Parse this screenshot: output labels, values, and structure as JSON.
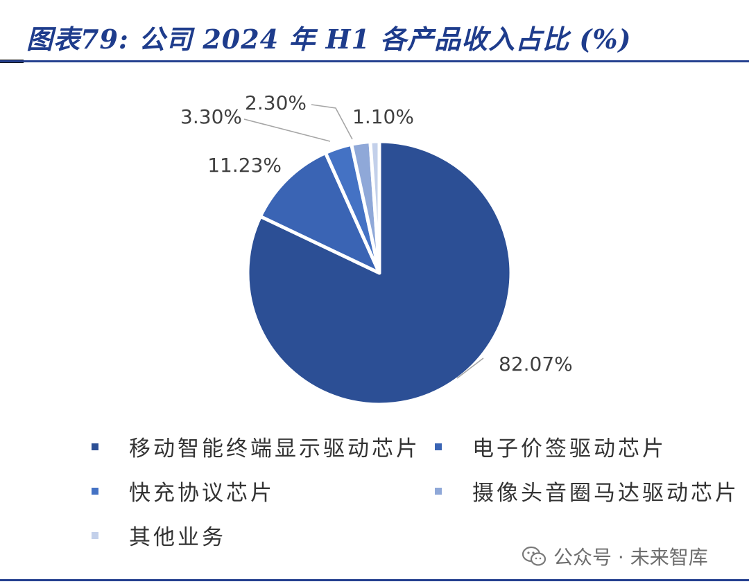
{
  "title": "图表79:  公司 2024 年 H1 各产品收入占比 (%)",
  "watermark": {
    "text": "公众号 · 未来智库",
    "icon": "wechat-icon"
  },
  "chart_data": {
    "type": "pie",
    "title": "图表79:  公司 2024 年 H1 各产品收入占比 (%)",
    "unit": "%",
    "start_angle_deg": 0,
    "direction": "clockwise",
    "slices": [
      {
        "name": "移动智能终端显示驱动芯片",
        "value": 82.07,
        "label": "82.07%",
        "color": "#2c4f95"
      },
      {
        "name": "电子价签驱动芯片",
        "value": 11.23,
        "label": "11.23%",
        "color": "#3a64b4"
      },
      {
        "name": "快充协议芯片",
        "value": 3.3,
        "label": "3.30%",
        "color": "#4472c4"
      },
      {
        "name": "摄像头音圈马达驱动芯片",
        "value": 2.3,
        "label": "2.30%",
        "color": "#8fa8d8"
      },
      {
        "name": "其他业务",
        "value": 1.1,
        "label": "1.10%",
        "color": "#c3d0ea"
      }
    ],
    "legend": {
      "position": "bottom",
      "columns": 2
    }
  }
}
